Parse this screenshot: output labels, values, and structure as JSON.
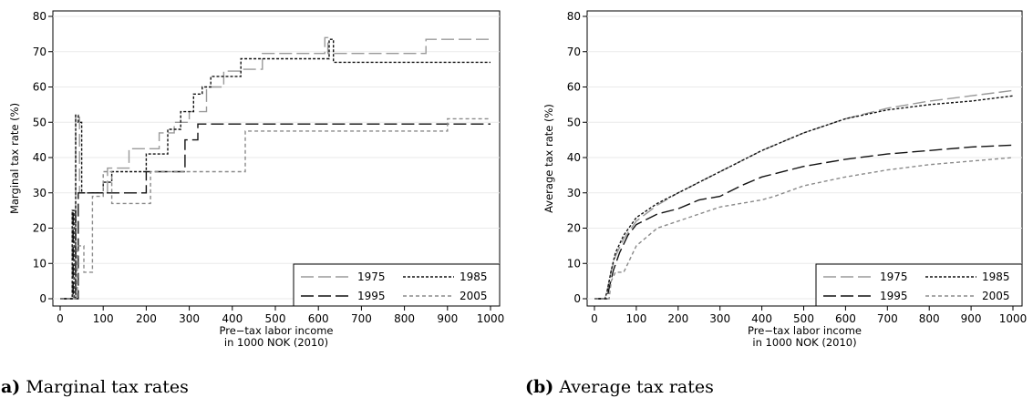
{
  "chart_data": [
    {
      "type": "line",
      "caption_letter": "(a)",
      "caption_text": "Marginal tax rates",
      "xlabel": [
        "Pre−tax labor income",
        "in 1000 NOK (2010)"
      ],
      "ylabel": "Marginal tax rate (%)",
      "xlim": [
        0,
        1000
      ],
      "ylim": [
        0,
        80
      ],
      "xticks": [
        "0",
        "100",
        "200",
        "300",
        "400",
        "500",
        "600",
        "700",
        "800",
        "900",
        "1000"
      ],
      "yticks": [
        "0",
        "10",
        "20",
        "30",
        "40",
        "50",
        "60",
        "70",
        "80"
      ],
      "grid": true,
      "legend_position": "bottom-right",
      "series": [
        {
          "name": "1975",
          "color": "#9a9a9a",
          "dash": "long",
          "x": [
            0,
            28,
            28,
            30,
            30,
            36,
            36,
            45,
            45,
            110,
            110,
            160,
            160,
            230,
            230,
            265,
            265,
            300,
            300,
            340,
            340,
            380,
            380,
            420,
            420,
            470,
            470,
            615,
            615,
            622,
            622,
            850,
            850,
            1000
          ],
          "y": [
            0,
            0,
            25,
            25,
            0,
            0,
            52,
            52,
            30,
            30,
            37,
            37,
            42.5,
            42.5,
            47,
            47,
            50,
            50,
            53,
            53,
            60,
            60,
            64.5,
            64.5,
            65,
            65,
            69.5,
            69.5,
            74,
            74,
            69.5,
            69.5,
            73.5,
            73.5
          ]
        },
        {
          "name": "1985",
          "color": "#111111",
          "dash": "dot",
          "x": [
            0,
            28,
            28,
            32,
            32,
            36,
            36,
            42,
            42,
            50,
            50,
            100,
            100,
            120,
            120,
            200,
            200,
            250,
            250,
            280,
            280,
            310,
            310,
            330,
            330,
            350,
            350,
            420,
            420,
            625,
            625,
            635,
            635,
            1000
          ],
          "y": [
            0,
            0,
            25,
            25,
            0,
            0,
            52,
            52,
            50,
            50,
            30,
            30,
            33,
            33,
            36,
            36,
            41,
            41,
            48,
            48,
            53,
            53,
            58,
            58,
            60,
            60,
            63,
            63,
            68,
            68,
            73.5,
            73.5,
            67,
            67
          ]
        },
        {
          "name": "1995",
          "color": "#111111",
          "dash": "long",
          "x": [
            0,
            30,
            30,
            36,
            36,
            42,
            42,
            200,
            200,
            290,
            290,
            320,
            320,
            1000
          ],
          "y": [
            0,
            0,
            25,
            25,
            0,
            0,
            30,
            30,
            36,
            36,
            45,
            45,
            49.5,
            49.5
          ]
        },
        {
          "name": "2005",
          "color": "#8a8a8a",
          "dash": "short",
          "x": [
            0,
            40,
            40,
            55,
            55,
            75,
            75,
            100,
            100,
            120,
            120,
            210,
            210,
            250,
            250,
            430,
            430,
            900,
            900,
            1000
          ],
          "y": [
            0,
            0,
            15,
            15,
            7.5,
            7.5,
            29,
            29,
            36,
            36,
            27,
            27,
            36,
            36,
            36,
            36,
            47.5,
            47.5,
            51,
            51
          ]
        }
      ]
    },
    {
      "type": "line",
      "caption_letter": "(b)",
      "caption_text": "Average tax rates",
      "xlabel": [
        "Pre−tax labor income",
        "in 1000 NOK (2010)"
      ],
      "ylabel": "Average tax rate (%)",
      "xlim": [
        0,
        1000
      ],
      "ylim": [
        0,
        80
      ],
      "xticks": [
        "0",
        "100",
        "200",
        "300",
        "400",
        "500",
        "600",
        "700",
        "800",
        "900",
        "1000"
      ],
      "yticks": [
        "0",
        "10",
        "20",
        "30",
        "40",
        "50",
        "60",
        "70",
        "80"
      ],
      "grid": true,
      "legend_position": "bottom-right",
      "series": [
        {
          "name": "1975",
          "color": "#9a9a9a",
          "dash": "long",
          "x": [
            0,
            25,
            30,
            40,
            50,
            70,
            100,
            150,
            200,
            300,
            400,
            500,
            600,
            700,
            800,
            900,
            1000
          ],
          "y": [
            0,
            0,
            2,
            8,
            12,
            17,
            22,
            26.5,
            30,
            36,
            42,
            47,
            51,
            54,
            56,
            57.5,
            59
          ]
        },
        {
          "name": "1985",
          "color": "#111111",
          "dash": "dot",
          "x": [
            0,
            25,
            30,
            40,
            50,
            70,
            100,
            150,
            200,
            300,
            400,
            500,
            600,
            700,
            800,
            900,
            1000
          ],
          "y": [
            0,
            0,
            2,
            8,
            13,
            18,
            23,
            27,
            30,
            36,
            42,
            47,
            51,
            53.5,
            55,
            56,
            57.5
          ]
        },
        {
          "name": "1995",
          "color": "#111111",
          "dash": "long",
          "x": [
            0,
            30,
            35,
            45,
            60,
            80,
            100,
            150,
            200,
            250,
            300,
            350,
            400,
            500,
            600,
            700,
            800,
            900,
            1000
          ],
          "y": [
            0,
            0,
            3,
            8,
            13,
            18,
            21,
            24,
            25.5,
            28,
            29,
            32,
            34.5,
            37.5,
            39.5,
            41,
            42,
            43,
            43.5
          ]
        },
        {
          "name": "2005",
          "color": "#8a8a8a",
          "dash": "short",
          "x": [
            0,
            35,
            40,
            50,
            60,
            70,
            80,
            100,
            150,
            200,
            250,
            300,
            400,
            430,
            500,
            600,
            700,
            800,
            900,
            1000
          ],
          "y": [
            0,
            0,
            5,
            7.5,
            7.5,
            7.5,
            10,
            15,
            20,
            22,
            24,
            26,
            28,
            29,
            32,
            34.5,
            36.5,
            38,
            39,
            40
          ]
        }
      ]
    }
  ]
}
